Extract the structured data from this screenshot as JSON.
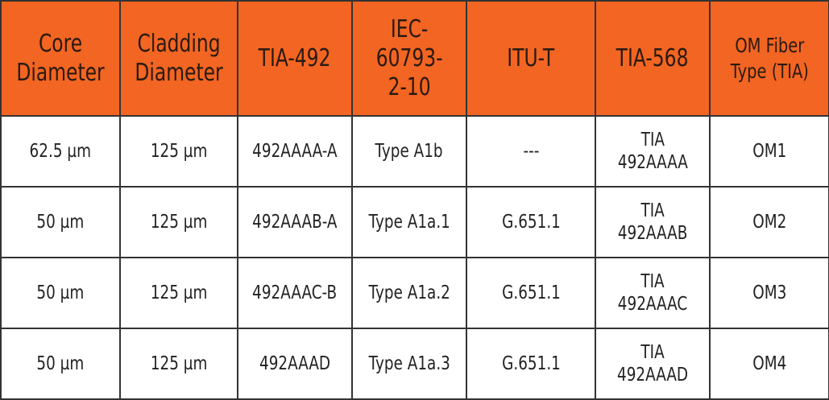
{
  "table": {
    "header": [
      "Core\nDiameter",
      "Cladding\nDiameter",
      "TIA-492",
      "IEC-\n60793-\n2-10",
      "ITU-T",
      "TIA-568",
      "OM Fiber\nType (TIA)"
    ],
    "rows": [
      [
        "62.5 µm",
        "125 µm",
        "492AAAA-A",
        "Type A1b",
        "---",
        "TIA\n492AAAA",
        "OM1"
      ],
      [
        "50 µm",
        "125 µm",
        "492AAAB-A",
        "Type A1a.1",
        "G.651.1",
        "TIA\n492AAAB",
        "OM2"
      ],
      [
        "50 µm",
        "125 µm",
        "492AAAC-B",
        "Type A1a.2",
        "G.651.1",
        "TIA\n492AAAC",
        "OM3"
      ],
      [
        "50 µm",
        "125 µm",
        "492AAAD",
        "Type A1a.3",
        "G.651.1",
        "TIA\n492AAAD",
        "OM4"
      ]
    ]
  }
}
